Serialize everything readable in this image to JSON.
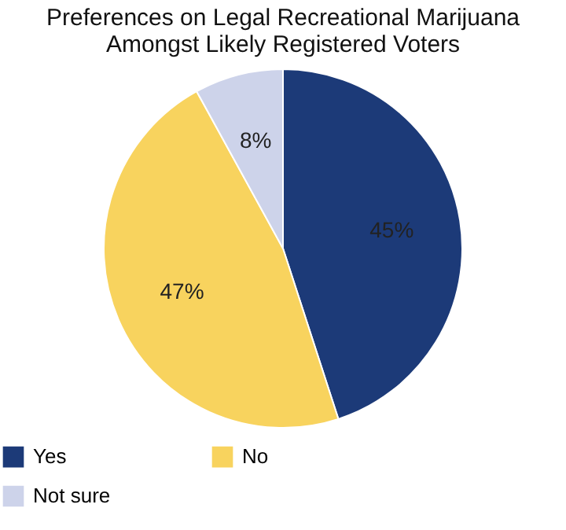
{
  "chart_data": {
    "type": "pie",
    "title": "Preferences on Legal Recreational Marijuana\nAmongst Likely Registered Voters",
    "categories": [
      "Yes",
      "No",
      "Not sure"
    ],
    "values": [
      45,
      47,
      8
    ],
    "value_labels": [
      "45%",
      "47%",
      "8%"
    ],
    "colors": [
      "#1c3a78",
      "#f8d35e",
      "#cdd3ea"
    ],
    "legend": "bottom"
  }
}
